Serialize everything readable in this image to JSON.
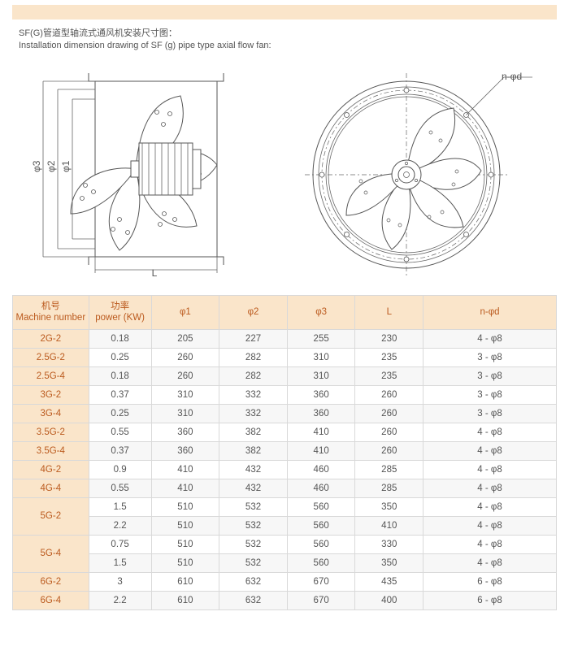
{
  "title_cn": "SF(G)管道型轴流式通风机安装尺寸图：",
  "title_en": "Installation dimension drawing of SF (g) pipe type axial flow fan:",
  "front_view": {
    "label_top": "n-φd",
    "phi1": "φ1",
    "phi2": "φ2",
    "phi3": "φ3",
    "L": "L"
  },
  "table": {
    "headers": [
      {
        "cn": "机号",
        "en": "Machine number"
      },
      {
        "cn": "功率",
        "en": "power (KW)"
      },
      {
        "cn": "",
        "en": "φ1"
      },
      {
        "cn": "",
        "en": "φ2"
      },
      {
        "cn": "",
        "en": "φ3"
      },
      {
        "cn": "",
        "en": "L"
      },
      {
        "cn": "",
        "en": "n-φd"
      }
    ],
    "rows": [
      {
        "m": "2G-2",
        "span": 1,
        "v": [
          "0.18",
          "205",
          "227",
          "255",
          "230",
          "4 - φ8"
        ]
      },
      {
        "m": "2.5G-2",
        "span": 1,
        "v": [
          "0.25",
          "260",
          "282",
          "310",
          "235",
          "3 - φ8"
        ]
      },
      {
        "m": "2.5G-4",
        "span": 1,
        "v": [
          "0.18",
          "260",
          "282",
          "310",
          "235",
          "3 - φ8"
        ]
      },
      {
        "m": "3G-2",
        "span": 1,
        "v": [
          "0.37",
          "310",
          "332",
          "360",
          "260",
          "3 - φ8"
        ]
      },
      {
        "m": "3G-4",
        "span": 1,
        "v": [
          "0.25",
          "310",
          "332",
          "360",
          "260",
          "3 - φ8"
        ]
      },
      {
        "m": "3.5G-2",
        "span": 1,
        "v": [
          "0.55",
          "360",
          "382",
          "410",
          "260",
          "4 - φ8"
        ]
      },
      {
        "m": "3.5G-4",
        "span": 1,
        "v": [
          "0.37",
          "360",
          "382",
          "410",
          "260",
          "4 - φ8"
        ]
      },
      {
        "m": "4G-2",
        "span": 1,
        "v": [
          "0.9",
          "410",
          "432",
          "460",
          "285",
          "4 - φ8"
        ]
      },
      {
        "m": "4G-4",
        "span": 1,
        "v": [
          "0.55",
          "410",
          "432",
          "460",
          "285",
          "4 - φ8"
        ]
      },
      {
        "m": "5G-2",
        "span": 2,
        "v": [
          "1.5",
          "510",
          "532",
          "560",
          "350",
          "4 - φ8"
        ]
      },
      {
        "m": "",
        "span": 0,
        "v": [
          "2.2",
          "510",
          "532",
          "560",
          "410",
          "4 - φ8"
        ]
      },
      {
        "m": "5G-4",
        "span": 2,
        "v": [
          "0.75",
          "510",
          "532",
          "560",
          "330",
          "4 - φ8"
        ]
      },
      {
        "m": "",
        "span": 0,
        "v": [
          "1.5",
          "510",
          "532",
          "560",
          "350",
          "4 - φ8"
        ]
      },
      {
        "m": "6G-2",
        "span": 1,
        "v": [
          "3",
          "610",
          "632",
          "670",
          "435",
          "6 - φ8"
        ]
      },
      {
        "m": "6G-4",
        "span": 1,
        "v": [
          "2.2",
          "610",
          "632",
          "670",
          "400",
          "6 - φ8"
        ]
      }
    ],
    "col_widths_pct": [
      14,
      11.5,
      12.5,
      12.5,
      12.5,
      12.5,
      24.5
    ],
    "header_bg": "#fae5ca",
    "header_color": "#bb5a1e",
    "body_color": "#555555",
    "border_color": "#d9d9d9",
    "stripe_bg": "#f7f7f7"
  }
}
